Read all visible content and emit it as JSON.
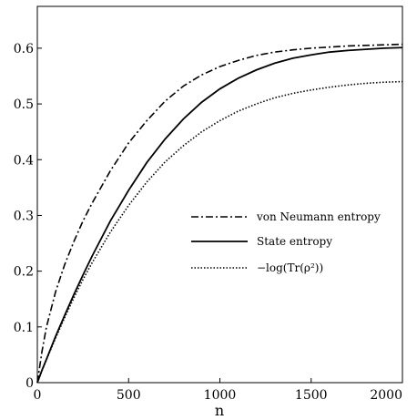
{
  "chart_data": {
    "type": "line",
    "title": "",
    "xlabel": "n",
    "ylabel": "",
    "xlim": [
      0,
      2000
    ],
    "ylim": [
      0,
      0.675
    ],
    "xticks": [
      0,
      500,
      1000,
      1500,
      2000
    ],
    "xtick_labels": [
      "0",
      "500",
      "1000",
      "1500",
      "2000"
    ],
    "yticks": [
      0,
      0.1,
      0.2,
      0.3,
      0.4,
      0.5,
      0.6
    ],
    "ytick_labels": [
      "0",
      "0.1",
      "0.2",
      "0.3",
      "0.4",
      "0.5",
      "0.6"
    ],
    "grid": false,
    "legend_position": "center-right",
    "series": [
      {
        "name": "von Neumann entropy",
        "line_style": "dashdot",
        "x": [
          0,
          25,
          50,
          100,
          150,
          200,
          250,
          300,
          400,
          500,
          600,
          700,
          800,
          900,
          1000,
          1100,
          1200,
          1300,
          1400,
          1500,
          1600,
          1700,
          1800,
          1900,
          2000
        ],
        "y": [
          0,
          0.055,
          0.1,
          0.163,
          0.212,
          0.253,
          0.29,
          0.322,
          0.38,
          0.43,
          0.47,
          0.505,
          0.532,
          0.552,
          0.567,
          0.578,
          0.587,
          0.593,
          0.597,
          0.6,
          0.602,
          0.604,
          0.605,
          0.606,
          0.607
        ]
      },
      {
        "name": "State entropy",
        "line_style": "solid",
        "x": [
          0,
          25,
          50,
          100,
          150,
          200,
          250,
          300,
          400,
          500,
          600,
          700,
          800,
          900,
          1000,
          1100,
          1200,
          1300,
          1400,
          1500,
          1600,
          1700,
          1800,
          1900,
          2000
        ],
        "y": [
          0,
          0.022,
          0.042,
          0.083,
          0.121,
          0.158,
          0.193,
          0.227,
          0.29,
          0.345,
          0.395,
          0.437,
          0.473,
          0.503,
          0.527,
          0.546,
          0.561,
          0.573,
          0.582,
          0.588,
          0.593,
          0.596,
          0.598,
          0.6,
          0.601
        ]
      },
      {
        "name": "−log(Tr(ρ²))",
        "line_style": "dotted",
        "x": [
          0,
          25,
          50,
          100,
          150,
          200,
          250,
          300,
          400,
          500,
          600,
          700,
          800,
          900,
          1000,
          1100,
          1200,
          1300,
          1400,
          1500,
          1600,
          1700,
          1800,
          1900,
          2000
        ],
        "y": [
          0,
          0.021,
          0.041,
          0.08,
          0.117,
          0.152,
          0.185,
          0.215,
          0.27,
          0.318,
          0.36,
          0.396,
          0.425,
          0.45,
          0.47,
          0.487,
          0.5,
          0.511,
          0.519,
          0.525,
          0.53,
          0.534,
          0.537,
          0.539,
          0.54
        ]
      }
    ]
  }
}
